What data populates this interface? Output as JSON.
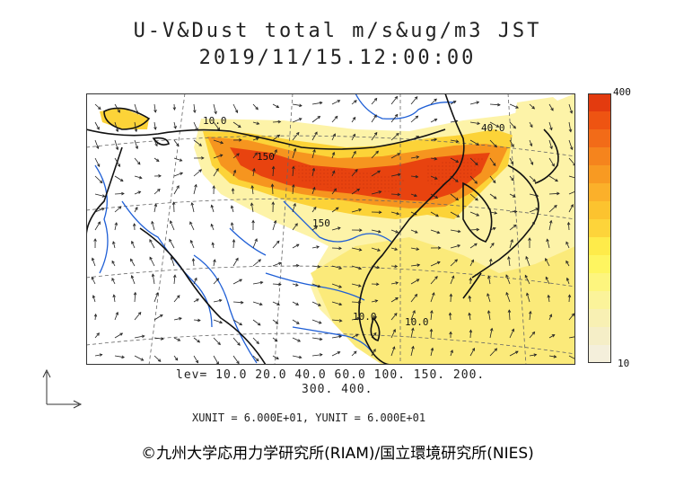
{
  "title": "U-V&Dust total m/s&ug/m3 JST",
  "datetime": "2019/11/15.12:00:00",
  "legend": {
    "max_label": "400",
    "min_label": "10",
    "colors": [
      "#e33b0f",
      "#ee5412",
      "#f26b18",
      "#f5841d",
      "#f89a22",
      "#fbb02a",
      "#fcc32f",
      "#fdd43a",
      "#feeb4a",
      "#fef560",
      "#fdf57e",
      "#fbf39a",
      "#f8f0b3",
      "#f5eec7",
      "#f4efdb"
    ]
  },
  "contour_labels": [
    "10.0",
    "150",
    "150",
    "10.0",
    "40.0",
    "10.0"
  ],
  "levels_line1": "lev= 10.0 20.0 40.0 60.0 100. 150. 200.",
  "levels_line2": "300. 400.",
  "units_line": "XUNIT = 6.000E+01, YUNIT = 6.000E+01",
  "credit": "©九州大学応用力学研究所(RIAM)/国立環境研究所(NIES)",
  "colors": {
    "coast": "#111111",
    "river": "#1f5fd6",
    "dust_high": "#e33b0f",
    "dust_low": "#fef3a0"
  }
}
